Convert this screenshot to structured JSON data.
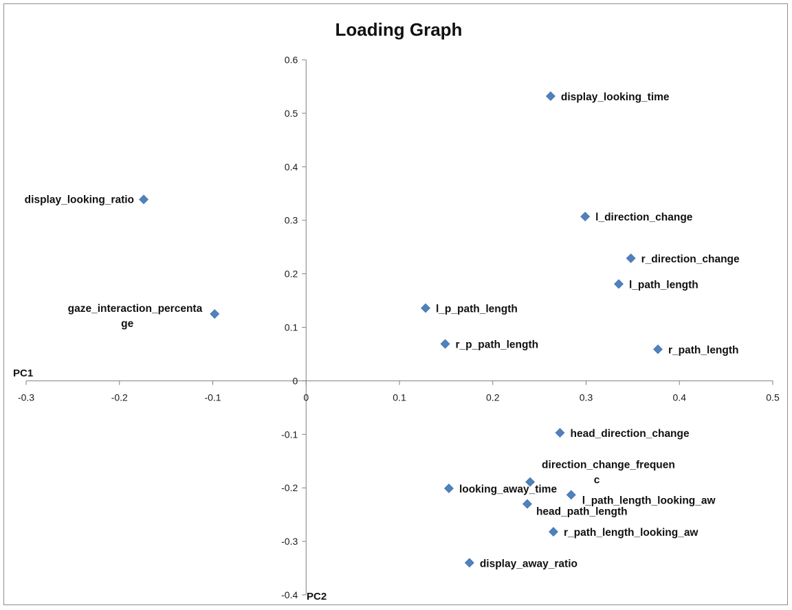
{
  "chart_data": {
    "type": "scatter",
    "title": "Loading Graph",
    "xlabel": "PC1",
    "ylabel": "PC2",
    "xlim": [
      -0.3,
      0.5
    ],
    "ylim": [
      -0.4,
      0.6
    ],
    "x_ticks": [
      -0.3,
      -0.2,
      -0.1,
      0,
      0.1,
      0.2,
      0.3,
      0.4,
      0.5
    ],
    "y_ticks": [
      -0.4,
      -0.3,
      -0.2,
      -0.1,
      0,
      0.1,
      0.2,
      0.3,
      0.4,
      0.5,
      0.6
    ],
    "grid": false,
    "marker_color": "#4f81bd",
    "points": [
      {
        "label": [
          "display_looking_time"
        ],
        "x": 0.262,
        "y": 0.532
      },
      {
        "label": [
          "display_looking_ratio"
        ],
        "x": -0.174,
        "y": 0.339
      },
      {
        "label": [
          "l_direction_change"
        ],
        "x": 0.299,
        "y": 0.307
      },
      {
        "label": [
          "r_direction_change"
        ],
        "x": 0.348,
        "y": 0.229
      },
      {
        "label": [
          "l_path_length"
        ],
        "x": 0.335,
        "y": 0.181
      },
      {
        "label": [
          "gaze_interaction_percenta",
          "ge"
        ],
        "x": -0.098,
        "y": 0.125
      },
      {
        "label": [
          "l_p_path_length"
        ],
        "x": 0.128,
        "y": 0.136
      },
      {
        "label": [
          "r_p_path_length"
        ],
        "x": 0.149,
        "y": 0.069
      },
      {
        "label": [
          "r_path_length"
        ],
        "x": 0.377,
        "y": 0.059
      },
      {
        "label": [
          "head_direction_change"
        ],
        "x": 0.272,
        "y": -0.097
      },
      {
        "label": [
          "direction_change_frequen",
          "c"
        ],
        "x": 0.24,
        "y": -0.189
      },
      {
        "label": [
          "looking_away_time"
        ],
        "x": 0.153,
        "y": -0.201
      },
      {
        "label": [
          "l_path_length_looking_aw"
        ],
        "x": 0.284,
        "y": -0.213
      },
      {
        "label": [
          "head_path_length"
        ],
        "x": 0.237,
        "y": -0.23
      },
      {
        "label": [
          "r_path_length_looking_aw"
        ],
        "x": 0.265,
        "y": -0.282
      },
      {
        "label": [
          "display_away_ratio"
        ],
        "x": 0.175,
        "y": -0.34
      }
    ]
  }
}
